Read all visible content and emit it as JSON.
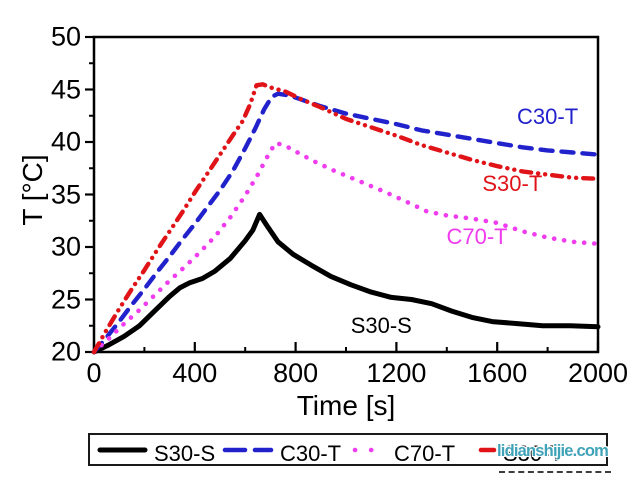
{
  "page": {
    "background": "#ffffff"
  },
  "watermark": {
    "text": "lidianshijie.com",
    "color": "#41a3b8"
  },
  "chart_data": {
    "type": "line",
    "title": "",
    "xlabel": "Time [s]",
    "ylabel": "T [°C]",
    "xlim": [
      0,
      2000
    ],
    "ylim": [
      20,
      50
    ],
    "grid": false,
    "x_major_ticks": [
      0,
      400,
      800,
      1200,
      1600,
      2000
    ],
    "x_minor_ticks": [
      200,
      600,
      1000,
      1400,
      1800
    ],
    "y_major_ticks": [
      20,
      25,
      30,
      35,
      40,
      45,
      50
    ],
    "y_minor_ticks": [
      22.5,
      27.5,
      32.5,
      37.5,
      42.5,
      47.5
    ],
    "series": [
      {
        "name": "S30-S",
        "color": "#000000",
        "style": "solid",
        "points": [
          [
            0,
            20.0
          ],
          [
            60,
            20.7
          ],
          [
            120,
            21.5
          ],
          [
            180,
            22.5
          ],
          [
            240,
            23.9
          ],
          [
            300,
            25.3
          ],
          [
            340,
            26.1
          ],
          [
            380,
            26.6
          ],
          [
            430,
            27.0
          ],
          [
            480,
            27.7
          ],
          [
            540,
            28.9
          ],
          [
            600,
            30.6
          ],
          [
            630,
            31.6
          ],
          [
            657,
            33.1
          ],
          [
            690,
            31.9
          ],
          [
            730,
            30.5
          ],
          [
            790,
            29.3
          ],
          [
            860,
            28.3
          ],
          [
            940,
            27.2
          ],
          [
            1020,
            26.4
          ],
          [
            1100,
            25.7
          ],
          [
            1180,
            25.2
          ],
          [
            1260,
            25.0
          ],
          [
            1340,
            24.6
          ],
          [
            1420,
            23.9
          ],
          [
            1500,
            23.3
          ],
          [
            1580,
            22.9
          ],
          [
            1680,
            22.7
          ],
          [
            1780,
            22.5
          ],
          [
            1890,
            22.5
          ],
          [
            2000,
            22.4
          ]
        ]
      },
      {
        "name": "C30-T",
        "color": "#2222cc",
        "style": "dashed",
        "points": [
          [
            0,
            20.0
          ],
          [
            50,
            21.4
          ],
          [
            100,
            22.9
          ],
          [
            150,
            24.5
          ],
          [
            200,
            26.0
          ],
          [
            250,
            27.6
          ],
          [
            300,
            29.1
          ],
          [
            350,
            30.7
          ],
          [
            400,
            32.2
          ],
          [
            450,
            33.8
          ],
          [
            500,
            35.4
          ],
          [
            550,
            37.2
          ],
          [
            600,
            39.4
          ],
          [
            640,
            41.3
          ],
          [
            675,
            43.1
          ],
          [
            705,
            44.3
          ],
          [
            730,
            44.6
          ],
          [
            780,
            44.4
          ],
          [
            840,
            43.9
          ],
          [
            900,
            43.4
          ],
          [
            1000,
            42.7
          ],
          [
            1100,
            42.2
          ],
          [
            1200,
            41.7
          ],
          [
            1300,
            41.1
          ],
          [
            1400,
            40.7
          ],
          [
            1500,
            40.3
          ],
          [
            1600,
            39.9
          ],
          [
            1700,
            39.5
          ],
          [
            1800,
            39.2
          ],
          [
            1900,
            39.0
          ],
          [
            2000,
            38.8
          ]
        ]
      },
      {
        "name": "C70-T",
        "color": "#ee3cee",
        "style": "dotted",
        "points": [
          [
            0,
            20.0
          ],
          [
            60,
            21.3
          ],
          [
            120,
            22.7
          ],
          [
            180,
            24.0
          ],
          [
            240,
            25.4
          ],
          [
            300,
            26.8
          ],
          [
            360,
            28.1
          ],
          [
            420,
            29.5
          ],
          [
            480,
            31.0
          ],
          [
            540,
            32.8
          ],
          [
            600,
            34.9
          ],
          [
            650,
            36.9
          ],
          [
            690,
            38.7
          ],
          [
            720,
            39.9
          ],
          [
            755,
            39.7
          ],
          [
            800,
            39.1
          ],
          [
            870,
            38.2
          ],
          [
            950,
            37.3
          ],
          [
            1050,
            36.3
          ],
          [
            1150,
            35.3
          ],
          [
            1250,
            34.2
          ],
          [
            1320,
            33.4
          ],
          [
            1400,
            33.0
          ],
          [
            1500,
            32.7
          ],
          [
            1600,
            32.3
          ],
          [
            1700,
            31.5
          ],
          [
            1800,
            30.9
          ],
          [
            1900,
            30.5
          ],
          [
            2000,
            30.3
          ]
        ]
      },
      {
        "name": "S30-T",
        "color": "#e01418",
        "style": "dashdotdot",
        "points": [
          [
            0,
            20.0
          ],
          [
            50,
            22.1
          ],
          [
            100,
            24.1
          ],
          [
            150,
            26.0
          ],
          [
            200,
            27.8
          ],
          [
            250,
            29.7
          ],
          [
            300,
            31.5
          ],
          [
            350,
            33.3
          ],
          [
            400,
            35.2
          ],
          [
            450,
            37.0
          ],
          [
            500,
            38.8
          ],
          [
            550,
            40.6
          ],
          [
            590,
            42.0
          ],
          [
            620,
            43.6
          ],
          [
            645,
            45.4
          ],
          [
            670,
            45.5
          ],
          [
            700,
            45.2
          ],
          [
            760,
            44.8
          ],
          [
            820,
            44.1
          ],
          [
            900,
            43.3
          ],
          [
            1000,
            42.2
          ],
          [
            1100,
            41.4
          ],
          [
            1200,
            40.6
          ],
          [
            1300,
            39.7
          ],
          [
            1400,
            39.0
          ],
          [
            1500,
            38.3
          ],
          [
            1600,
            37.7
          ],
          [
            1700,
            37.2
          ],
          [
            1800,
            36.9
          ],
          [
            1900,
            36.6
          ],
          [
            2000,
            36.5
          ]
        ]
      }
    ],
    "annotations": [
      {
        "text": "C30-T",
        "x": 1800,
        "y": 42.4
      },
      {
        "text": "S30-T",
        "x": 1660,
        "y": 36.0
      },
      {
        "text": "C70-T",
        "x": 1520,
        "y": 31.0
      },
      {
        "text": "S30-S",
        "x": 1140,
        "y": 22.5
      }
    ],
    "legend": {
      "position": "bottom",
      "entries": [
        "S30-S",
        "C30-T",
        "C70-T",
        "S30-T"
      ]
    }
  }
}
